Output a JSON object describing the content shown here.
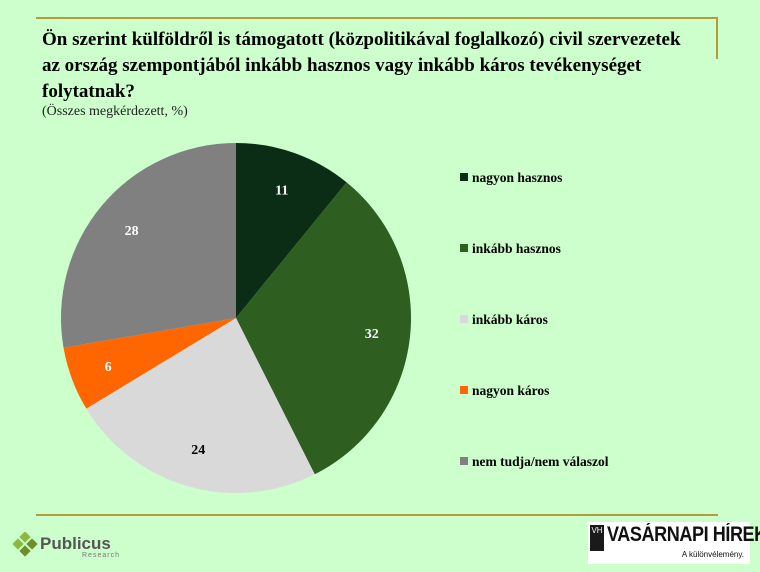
{
  "header": {
    "title": "Ön szerint külföldről is támogatott (közpolitikával foglalkozó) civil szervezetek az ország szempontjából inkább hasznos vagy inkább káros tevékenységet folytatnak?",
    "subtitle": "(Összes megkérdezett, %)"
  },
  "chart_data": {
    "type": "pie",
    "title": "Ön szerint külföldről is támogatott (közpolitikával foglalkozó) civil szervezetek az ország szempontjából inkább hasznos vagy inkább káros tevékenységet folytatnak?",
    "subtitle": "(Összes megkérdezett, %)",
    "categories": [
      "nagyon hasznos",
      "inkább hasznos",
      "inkább káros",
      "nagyon káros",
      "nem tudja/nem válaszol"
    ],
    "values": [
      11,
      32,
      24,
      6,
      28
    ],
    "colors": [
      "#0b2d15",
      "#2e5e20",
      "#d9d9d9",
      "#ff6600",
      "#808080"
    ],
    "label_colors": [
      "#ffffff",
      "#ffffff",
      "#000000",
      "#ffffff",
      "#ffffff"
    ],
    "start_angle": "12 o'clock",
    "direction": "clockwise",
    "legend_position": "right"
  },
  "branding": {
    "left_logo": {
      "name": "Publicus",
      "sub": "Research"
    },
    "right_logo": {
      "name": "VASÁRNAPI HÍREK",
      "mark": "VH",
      "tagline": "A különvélemény."
    }
  }
}
